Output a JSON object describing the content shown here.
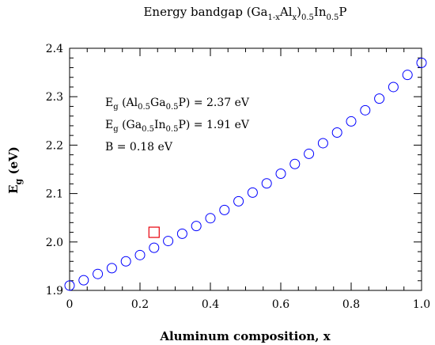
{
  "chart_data": {
    "type": "scatter",
    "title": {
      "main": "Energy bandgap (Ga",
      "sub1": "1-x",
      "mid1": "Al",
      "sub2": "x",
      "mid2": ")",
      "sub3": "0.5",
      "mid3": "In",
      "sub4": "0.5",
      "end": "P"
    },
    "xlabel": "Aluminum composition, x",
    "ylabel": {
      "main": "E",
      "sub": "g",
      "tail": " (eV)"
    },
    "xlim": [
      0,
      1
    ],
    "ylim": [
      1.9,
      2.4
    ],
    "x_ticks": [
      "0",
      "0.2",
      "0.4",
      "0.6",
      "0.8",
      "1.0"
    ],
    "y_ticks": [
      "1.9",
      "2.0",
      "2.1",
      "2.2",
      "2.3",
      "2.4"
    ],
    "grid": false,
    "annotations": [
      {
        "pre": "E",
        "sub": "g",
        "a": " (Al",
        "s1": "0.5",
        "b": "Ga",
        "s2": "0.5",
        "c": "P) = 2.37 eV"
      },
      {
        "pre": "E",
        "sub": "g",
        "a": " (Ga",
        "s1": "0.5",
        "b": "In",
        "s2": "0.5",
        "c": "P) = 1.91 eV"
      },
      {
        "pre": "B = 0.18 eV",
        "sub": "",
        "a": "",
        "s1": "",
        "b": "",
        "s2": "",
        "c": ""
      }
    ],
    "series": [
      {
        "marker": "circle",
        "color": "#0000ff",
        "x": [
          0,
          0.04,
          0.08,
          0.12,
          0.16,
          0.2,
          0.24,
          0.28,
          0.32,
          0.36,
          0.4,
          0.44,
          0.48,
          0.52,
          0.56,
          0.6,
          0.64,
          0.68,
          0.72,
          0.76,
          0.8,
          0.84,
          0.88,
          0.92,
          0.96,
          1.0
        ],
        "y": [
          1.91,
          1.921,
          1.934,
          1.946,
          1.96,
          1.973,
          1.988,
          2.002,
          2.017,
          2.033,
          2.049,
          2.066,
          2.084,
          2.102,
          2.121,
          2.141,
          2.161,
          2.182,
          2.204,
          2.226,
          2.249,
          2.272,
          2.296,
          2.32,
          2.345,
          2.37
        ]
      },
      {
        "marker": "square",
        "color": "#e8000b",
        "x": [
          0.24
        ],
        "y": [
          2.02
        ]
      }
    ]
  }
}
